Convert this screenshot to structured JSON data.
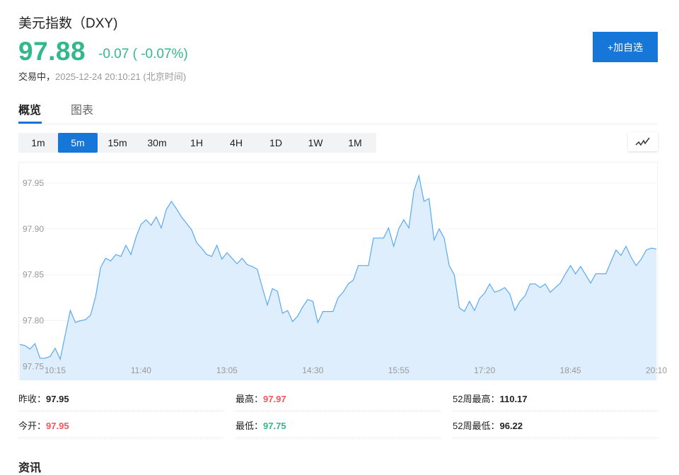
{
  "header": {
    "title": "美元指数（DXY)",
    "price": "97.88",
    "change": "-0.07 ( -0.07%)",
    "status_label": "交易中，",
    "timestamp": "2025-12-24 20:10:21",
    "timezone": "(北京时间)",
    "add_watchlist_label": "+加自选"
  },
  "colors": {
    "up": "#f5555a",
    "down": "#32b88a",
    "accent": "#1677d9",
    "line": "#5aa9f2",
    "fill": "#deeefd"
  },
  "tabs": [
    {
      "label": "概览",
      "active": true
    },
    {
      "label": "图表",
      "active": false
    }
  ],
  "intervals": [
    {
      "label": "1m"
    },
    {
      "label": "5m",
      "active": true
    },
    {
      "label": "15m"
    },
    {
      "label": "30m"
    },
    {
      "label": "1H"
    },
    {
      "label": "4H"
    },
    {
      "label": "1D"
    },
    {
      "label": "1W"
    },
    {
      "label": "1M"
    }
  ],
  "chart_type_icon": "line-chart-icon",
  "stats": [
    {
      "label": "昨收：",
      "value": "97.95",
      "color": "neutral"
    },
    {
      "label": "最高：",
      "value": "97.97",
      "color": "up"
    },
    {
      "label": "52周最高：",
      "value": "110.17",
      "color": "neutral"
    },
    {
      "label": "今开：",
      "value": "97.95",
      "color": "up"
    },
    {
      "label": "最低：",
      "value": "97.75",
      "color": "down"
    },
    {
      "label": "52周最低：",
      "value": "96.22",
      "color": "neutral"
    }
  ],
  "news_heading": "资讯",
  "chart_data": {
    "type": "area",
    "interval": "5m",
    "ylim": [
      97.735,
      97.973
    ],
    "yticks": [
      "97.75",
      "97.80",
      "97.85",
      "97.90",
      "97.95"
    ],
    "xticks": [
      "10:15",
      "11:40",
      "13:05",
      "14:30",
      "15:55",
      "17:20",
      "18:45",
      "20:10"
    ],
    "grid": true,
    "x": [
      "09:40",
      "09:45",
      "09:50",
      "09:55",
      "10:00",
      "10:05",
      "10:10",
      "10:15",
      "10:20",
      "10:25",
      "10:30",
      "10:35",
      "10:40",
      "10:45",
      "10:50",
      "10:55",
      "11:00",
      "11:05",
      "11:10",
      "11:15",
      "11:20",
      "11:25",
      "11:30",
      "11:35",
      "11:40",
      "11:45",
      "11:50",
      "11:55",
      "12:00",
      "12:05",
      "12:10",
      "12:15",
      "12:20",
      "12:25",
      "12:30",
      "12:35",
      "12:40",
      "12:45",
      "12:50",
      "12:55",
      "13:00",
      "13:05",
      "13:10",
      "13:15",
      "13:20",
      "13:25",
      "13:30",
      "13:35",
      "13:40",
      "13:45",
      "13:50",
      "13:55",
      "14:00",
      "14:05",
      "14:10",
      "14:15",
      "14:20",
      "14:25",
      "14:30",
      "14:35",
      "14:40",
      "14:45",
      "14:50",
      "14:55",
      "15:00",
      "15:05",
      "15:10",
      "15:15",
      "15:20",
      "15:25",
      "15:30",
      "15:35",
      "15:40",
      "15:45",
      "15:50",
      "15:55",
      "16:00",
      "16:05",
      "16:10",
      "16:15",
      "16:20",
      "16:25",
      "16:30",
      "16:35",
      "16:40",
      "16:45",
      "16:50",
      "16:55",
      "17:00",
      "17:05",
      "17:10",
      "17:15",
      "17:20",
      "17:25",
      "17:30",
      "17:35",
      "17:40",
      "17:45",
      "17:50",
      "17:55",
      "18:00",
      "18:05",
      "18:10",
      "18:15",
      "18:20",
      "18:25",
      "18:30",
      "18:35",
      "18:40",
      "18:45",
      "18:50",
      "18:55",
      "19:00",
      "19:05",
      "19:10",
      "19:15",
      "19:20",
      "19:25",
      "19:30",
      "19:35",
      "19:40",
      "19:45",
      "19:50",
      "19:55",
      "20:00",
      "20:05",
      "20:10"
    ],
    "values": [
      97.774,
      97.773,
      97.769,
      97.775,
      97.759,
      97.759,
      97.761,
      97.77,
      97.758,
      97.785,
      97.811,
      97.798,
      97.8,
      97.801,
      97.806,
      97.826,
      97.858,
      97.868,
      97.865,
      97.872,
      97.87,
      97.882,
      97.872,
      97.891,
      97.905,
      97.91,
      97.904,
      97.913,
      97.901,
      97.921,
      97.93,
      97.922,
      97.913,
      97.906,
      97.899,
      97.885,
      97.879,
      97.872,
      97.87,
      97.882,
      97.867,
      97.874,
      97.868,
      97.862,
      97.868,
      97.861,
      97.859,
      97.856,
      97.836,
      97.817,
      97.835,
      97.832,
      97.808,
      97.811,
      97.799,
      97.805,
      97.815,
      97.823,
      97.821,
      97.798,
      97.81,
      97.81,
      97.81,
      97.825,
      97.831,
      97.84,
      97.844,
      97.86,
      97.86,
      97.86,
      97.89,
      97.89,
      97.89,
      97.901,
      97.881,
      97.9,
      97.91,
      97.901,
      97.941,
      97.958,
      97.93,
      97.933,
      97.888,
      97.9,
      97.89,
      97.86,
      97.85,
      97.814,
      97.81,
      97.821,
      97.811,
      97.824,
      97.83,
      97.84,
      97.831,
      97.833,
      97.836,
      97.829,
      97.811,
      97.821,
      97.827,
      97.84,
      97.84,
      97.836,
      97.84,
      97.831,
      97.836,
      97.841,
      97.851,
      97.86,
      97.851,
      97.859,
      97.85,
      97.841,
      97.851,
      97.851,
      97.851,
      97.864,
      97.877,
      97.871,
      97.881,
      97.869,
      97.86,
      97.867,
      97.877,
      97.879,
      97.878
    ]
  }
}
